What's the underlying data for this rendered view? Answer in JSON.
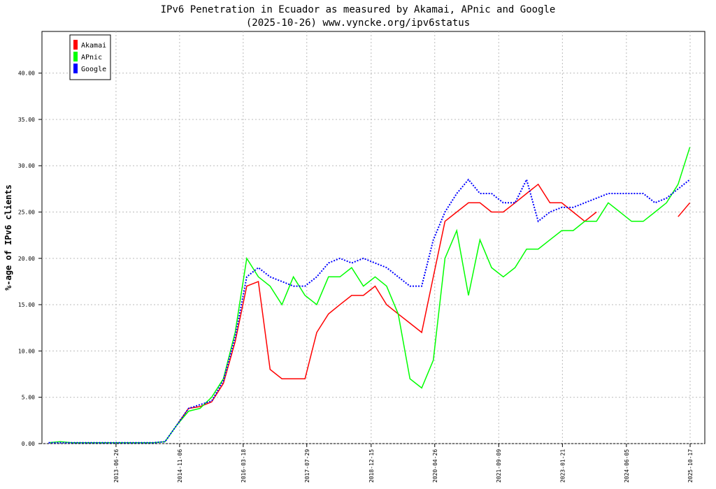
{
  "chart_data": {
    "type": "line",
    "title": "IPv6 Penetration in Ecuador as measured by Akamai, APnic and Google",
    "subtitle": "(2025-10-26) www.vyncke.org/ipv6status",
    "y_label": "%-age of IPv6 clients",
    "x": [
      "2012-01-15",
      "2012-04-15",
      "2012-07-15",
      "2012-10-15",
      "2013-01-15",
      "2013-04-15",
      "2013-07-15",
      "2013-10-15",
      "2014-01-15",
      "2014-04-15",
      "2014-07-15",
      "2014-10-15",
      "2015-01-15",
      "2015-04-15",
      "2015-07-15",
      "2015-10-15",
      "2016-01-15",
      "2016-04-15",
      "2016-07-15",
      "2016-10-15",
      "2017-01-15",
      "2017-04-15",
      "2017-07-15",
      "2017-10-15",
      "2018-01-15",
      "2018-04-15",
      "2018-07-15",
      "2018-10-15",
      "2019-01-15",
      "2019-04-15",
      "2019-07-15",
      "2019-10-15",
      "2020-01-15",
      "2020-04-15",
      "2020-07-15",
      "2020-10-15",
      "2021-01-15",
      "2021-04-15",
      "2021-07-15",
      "2021-10-15",
      "2022-01-15",
      "2022-04-15",
      "2022-07-15",
      "2022-10-15",
      "2023-01-15",
      "2023-04-15",
      "2023-07-15",
      "2023-10-15",
      "2024-01-15",
      "2024-04-15",
      "2024-07-15",
      "2024-10-15",
      "2025-01-15",
      "2025-04-15",
      "2025-07-15",
      "2025-10-15"
    ],
    "series": [
      {
        "name": "Akamai",
        "color": "#ff0000",
        "values": [
          null,
          null,
          null,
          null,
          null,
          null,
          null,
          null,
          null,
          null,
          null,
          2.0,
          3.8,
          4.0,
          4.5,
          6.5,
          11,
          17,
          17.5,
          8,
          7,
          7,
          7,
          12,
          14,
          15,
          16,
          16,
          17,
          15,
          14,
          13,
          12,
          18,
          24,
          25,
          26,
          26,
          25,
          25,
          26,
          27,
          28,
          26,
          26,
          25,
          24,
          25,
          null,
          null,
          null,
          null,
          null,
          null,
          24.5,
          26
        ]
      },
      {
        "name": "APnic",
        "color": "#00ff00",
        "values": [
          0.1,
          0.2,
          0.1,
          0.1,
          0.1,
          0.1,
          0.1,
          0.1,
          0.1,
          0.1,
          0.2,
          2.0,
          3.5,
          3.8,
          5.0,
          7.0,
          12,
          20,
          18,
          17,
          15,
          18,
          16,
          15,
          18,
          18,
          19,
          17,
          18,
          17,
          14,
          7,
          6,
          9,
          20,
          23,
          16,
          22,
          19,
          18,
          19,
          21,
          21,
          22,
          23,
          23,
          24,
          24,
          26,
          25,
          24,
          24,
          25,
          26,
          28,
          32
        ]
      },
      {
        "name": "Google",
        "color": "#0000ff",
        "dashed": true,
        "values": [
          0.1,
          0.1,
          0.1,
          0.1,
          0.1,
          0.1,
          0.1,
          0.1,
          0.1,
          0.1,
          0.2,
          2.0,
          3.8,
          4.2,
          4.6,
          6.8,
          11.5,
          18,
          19,
          18,
          17.5,
          17,
          17,
          18,
          19.5,
          20,
          19.5,
          20,
          19.5,
          19,
          18,
          17,
          17,
          22,
          25,
          27,
          28.5,
          27,
          27,
          26,
          26,
          28.5,
          24,
          25,
          25.5,
          25.5,
          26,
          26.5,
          27,
          27,
          27,
          27,
          26,
          26.5,
          27.5,
          28.5
        ]
      }
    ],
    "xlim": [
      "2011-11-24",
      "2026-02-09"
    ],
    "xticks": [
      "2013-06-26",
      "2014-11-06",
      "2016-03-18",
      "2017-07-29",
      "2018-12-15",
      "2020-04-26",
      "2021-09-09",
      "2023-01-21",
      "2024-06-05",
      "2025-10-17"
    ],
    "ylim": [
      0,
      44.5
    ],
    "yticks": [
      {
        "value": 0,
        "label": "0.00"
      },
      {
        "value": 5,
        "label": "5.00"
      },
      {
        "value": 10,
        "label": "10.00"
      },
      {
        "value": 15,
        "label": "15.00"
      },
      {
        "value": 20,
        "label": "20.00"
      },
      {
        "value": 25,
        "label": "25.00"
      },
      {
        "value": 30,
        "label": "30.00"
      },
      {
        "value": 35,
        "label": "35.00"
      },
      {
        "value": 40,
        "label": "40.00"
      }
    ],
    "grid": true,
    "legend": "top-left"
  }
}
